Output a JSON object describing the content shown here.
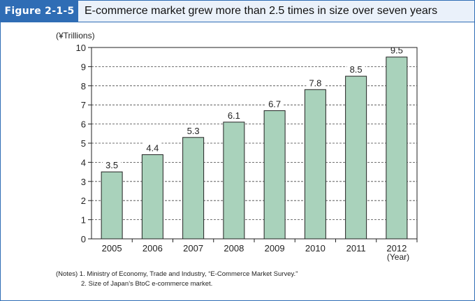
{
  "header": {
    "figure_label": "Figure 2-1-5",
    "title": "E-commerce market grew more than 2.5 times in size over seven years"
  },
  "colors": {
    "accent": "#2f6db5",
    "header_bg": "#eaf1fa",
    "bar_fill": "#a9d2bb",
    "bar_stroke": "#222222"
  },
  "chart_data": {
    "type": "bar",
    "title": "",
    "ylabel": "(¥Trillions)",
    "xlabel": "(Year)",
    "categories": [
      "2005",
      "2006",
      "2007",
      "2008",
      "2009",
      "2010",
      "2011",
      "2012"
    ],
    "values": [
      3.5,
      4.4,
      5.3,
      6.1,
      6.7,
      7.8,
      8.5,
      9.5
    ],
    "value_labels": [
      "3.5",
      "4.4",
      "5.3",
      "6.1",
      "6.7",
      "7.8",
      "8.5",
      "9.5"
    ],
    "ylim": [
      0,
      10
    ],
    "yticks": [
      0,
      1,
      2,
      3,
      4,
      5,
      6,
      7,
      8,
      9,
      10
    ],
    "grid": "dashed horizontal",
    "legend": "none"
  },
  "notes": {
    "line1": "(Notes) 1. Ministry of Economy, Trade and Industry, “E-Commerce Market Survey.”",
    "line2": "2. Size of Japan’s BtoC e-commerce market."
  }
}
